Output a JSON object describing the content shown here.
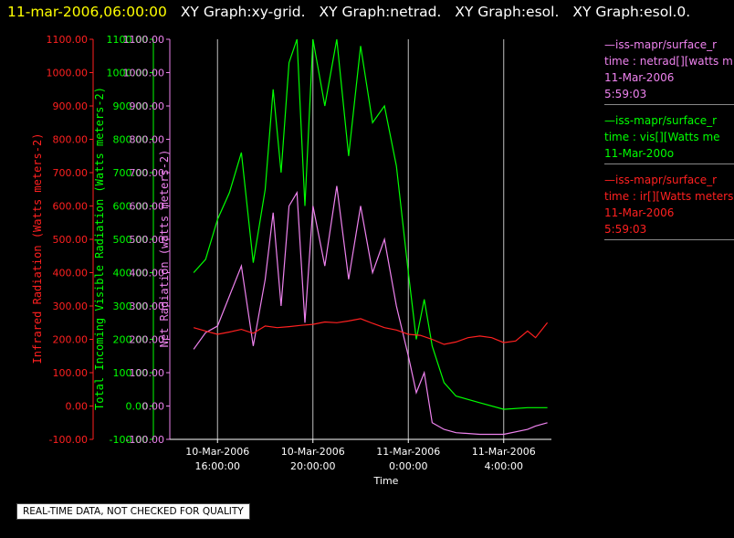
{
  "title": {
    "time": "11-mar-2006,06:00:00",
    "graphs": [
      "XY Graph:xy-grid.",
      "XY Graph:netrad.",
      "XY Graph:esol.",
      "XY Graph:esol.0."
    ]
  },
  "colors": {
    "ir": "#ff2020",
    "vis": "#00ff00",
    "net": "#ee82ee",
    "grid": "#ffffff",
    "axis": "#ffffff"
  },
  "legend": [
    {
      "color": "#ee82ee",
      "lines": [
        "—iss-mapr/surface_r",
        "time : netrad[][watts m",
        "11-Mar-2006",
        "5:59:03"
      ]
    },
    {
      "color": "#00ff00",
      "lines": [
        "—iss-mapr/surface_r",
        "time : vis[][Watts me",
        "11-Mar-200o"
      ]
    },
    {
      "color": "#ff2020",
      "lines": [
        "—iss-mapr/surface_r",
        "time : ir[][Watts meters",
        "11-Mar-2006",
        "5:59:03"
      ]
    }
  ],
  "notice": "REAL-TIME DATA, NOT CHECKED FOR QUALITY",
  "chart_data": {
    "type": "line",
    "xlabel": "Time",
    "xlim": [
      "10-Mar-2006 14:00",
      "11-Mar-2006 06:00"
    ],
    "x_ticks": [
      {
        "time": "10-Mar-2006 16:00",
        "line1": "10-Mar-2006",
        "line2": "16:00:00"
      },
      {
        "time": "10-Mar-2006 20:00",
        "line1": "10-Mar-2006",
        "line2": "20:00:00"
      },
      {
        "time": "11-Mar-2006 00:00",
        "line1": "11-Mar-2006",
        "line2": "0:00:00"
      },
      {
        "time": "11-Mar-2006 04:00",
        "line1": "11-Mar-2006",
        "line2": "4:00:00"
      }
    ],
    "grid": "vertical lines at x ticks",
    "y_ticks": [
      "1100.00",
      "1000.00",
      "900.00",
      "800.00",
      "700.00",
      "600.00",
      "500.00",
      "400.00",
      "300.00",
      "200.00",
      "100.00",
      "0.00",
      "-100.00"
    ],
    "axes": [
      {
        "label": "Infrared Radiation (Watts meters-2)",
        "color": "#ff2020",
        "ylim": [
          -100,
          1100
        ]
      },
      {
        "label": "Total Incoming Visible Radiation (Watts meters-2)",
        "color": "#00ff00",
        "ylim": [
          -100,
          1100
        ]
      },
      {
        "label": "Net Radiation (watts meters-2)",
        "color": "#ee82ee",
        "ylim": [
          -100,
          1100
        ]
      }
    ],
    "series": [
      {
        "name": "iss-mapr/surface_r time : ir[][Watts meters",
        "color": "#ff2020",
        "x": [
          "10-Mar-2006 15:00",
          "10-Mar-2006 15:30",
          "10-Mar-2006 16:00",
          "10-Mar-2006 16:30",
          "10-Mar-2006 17:00",
          "10-Mar-2006 17:30",
          "10-Mar-2006 18:00",
          "10-Mar-2006 18:30",
          "10-Mar-2006 19:00",
          "10-Mar-2006 19:30",
          "10-Mar-2006 20:00",
          "10-Mar-2006 20:30",
          "10-Mar-2006 21:00",
          "10-Mar-2006 21:30",
          "10-Mar-2006 22:00",
          "10-Mar-2006 22:30",
          "10-Mar-2006 23:00",
          "10-Mar-2006 23:30",
          "11-Mar-2006 00:00",
          "11-Mar-2006 00:30",
          "11-Mar-2006 01:00",
          "11-Mar-2006 01:30",
          "11-Mar-2006 02:00",
          "11-Mar-2006 02:30",
          "11-Mar-2006 03:00",
          "11-Mar-2006 03:30",
          "11-Mar-2006 04:00",
          "11-Mar-2006 04:30",
          "11-Mar-2006 05:00",
          "11-Mar-2006 05:20",
          "11-Mar-2006 05:50"
        ],
        "values": [
          235,
          225,
          215,
          222,
          230,
          218,
          240,
          235,
          238,
          242,
          245,
          252,
          250,
          255,
          262,
          248,
          235,
          228,
          215,
          212,
          200,
          185,
          192,
          205,
          210,
          205,
          190,
          195,
          225,
          205,
          250
        ]
      },
      {
        "name": "iss-mapr/surface_r time : vis[][Watts me",
        "color": "#00ff00",
        "x": [
          "10-Mar-2006 15:00",
          "10-Mar-2006 15:30",
          "10-Mar-2006 16:00",
          "10-Mar-2006 16:30",
          "10-Mar-2006 17:00",
          "10-Mar-2006 17:30",
          "10-Mar-2006 18:00",
          "10-Mar-2006 18:20",
          "10-Mar-2006 18:40",
          "10-Mar-2006 19:00",
          "10-Mar-2006 19:20",
          "10-Mar-2006 19:40",
          "10-Mar-2006 20:00",
          "10-Mar-2006 20:30",
          "10-Mar-2006 21:00",
          "10-Mar-2006 21:30",
          "10-Mar-2006 22:00",
          "10-Mar-2006 22:30",
          "10-Mar-2006 23:00",
          "10-Mar-2006 23:30",
          "11-Mar-2006 00:00",
          "11-Mar-2006 00:20",
          "11-Mar-2006 00:40",
          "11-Mar-2006 01:00",
          "11-Mar-2006 01:30",
          "11-Mar-2006 02:00",
          "11-Mar-2006 03:00",
          "11-Mar-2006 04:00",
          "11-Mar-2006 05:00",
          "11-Mar-2006 05:50"
        ],
        "values": [
          400,
          440,
          560,
          640,
          760,
          430,
          650,
          950,
          700,
          1030,
          1100,
          600,
          1100,
          900,
          1100,
          750,
          1080,
          850,
          900,
          720,
          400,
          200,
          320,
          180,
          70,
          30,
          10,
          -10,
          -5,
          -5
        ]
      },
      {
        "name": "iss-mapr/surface_r time : netrad[][watts m",
        "color": "#ee82ee",
        "x": [
          "10-Mar-2006 15:00",
          "10-Mar-2006 15:30",
          "10-Mar-2006 16:00",
          "10-Mar-2006 16:30",
          "10-Mar-2006 17:00",
          "10-Mar-2006 17:30",
          "10-Mar-2006 18:00",
          "10-Mar-2006 18:20",
          "10-Mar-2006 18:40",
          "10-Mar-2006 19:00",
          "10-Mar-2006 19:20",
          "10-Mar-2006 19:40",
          "10-Mar-2006 20:00",
          "10-Mar-2006 20:30",
          "10-Mar-2006 21:00",
          "10-Mar-2006 21:30",
          "10-Mar-2006 22:00",
          "10-Mar-2006 22:30",
          "10-Mar-2006 23:00",
          "10-Mar-2006 23:30",
          "11-Mar-2006 00:00",
          "11-Mar-2006 00:20",
          "11-Mar-2006 00:40",
          "11-Mar-2006 01:00",
          "11-Mar-2006 01:30",
          "11-Mar-2006 02:00",
          "11-Mar-2006 03:00",
          "11-Mar-2006 04:00",
          "11-Mar-2006 05:00",
          "11-Mar-2006 05:20",
          "11-Mar-2006 05:50"
        ],
        "values": [
          170,
          220,
          240,
          330,
          420,
          180,
          380,
          580,
          300,
          600,
          640,
          250,
          600,
          420,
          660,
          380,
          600,
          400,
          500,
          300,
          150,
          40,
          100,
          -50,
          -70,
          -80,
          -85,
          -85,
          -70,
          -60,
          -50
        ]
      }
    ]
  }
}
